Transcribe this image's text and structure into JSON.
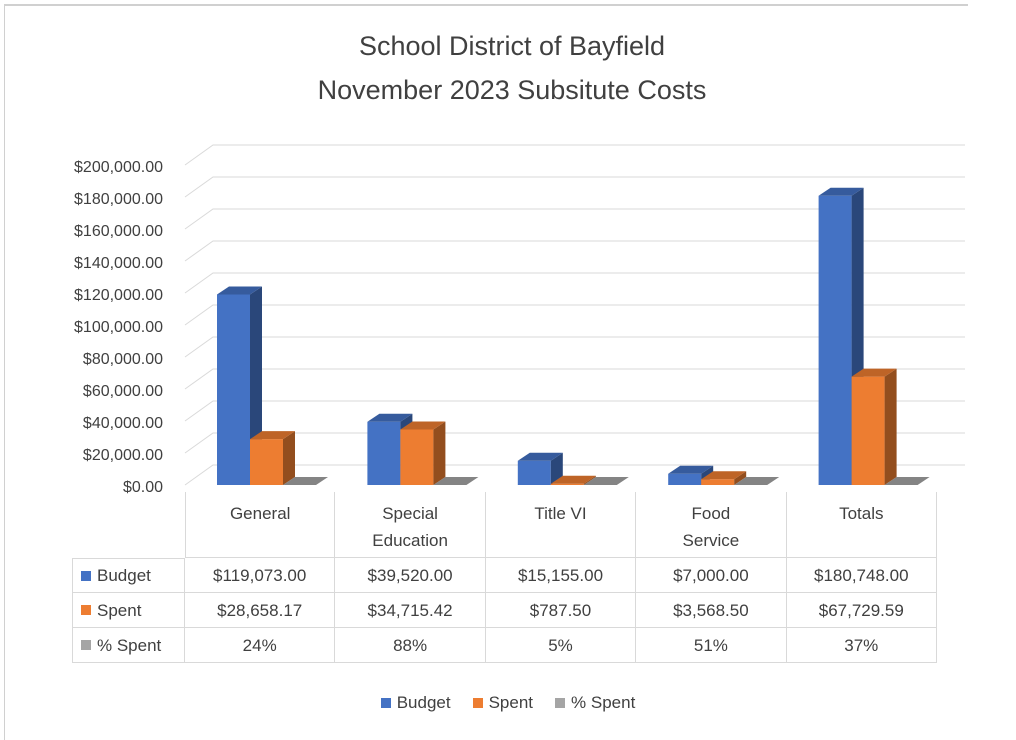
{
  "chart_data": {
    "type": "bar3d",
    "title": [
      "School District of Bayfield",
      "November 2023 Subsitute Costs"
    ],
    "categories": [
      "General",
      "Special Education",
      "Title VI",
      "Food Service",
      "Totals"
    ],
    "series": [
      {
        "name": "Budget",
        "color": "#4472c4",
        "values": [
          119073,
          39520,
          15155,
          7000,
          180748
        ],
        "value_labels": [
          "$119,073.00",
          "$39,520.00",
          "$15,155.00",
          "$7,000.00",
          "$180,748.00"
        ]
      },
      {
        "name": "Spent",
        "color": "#ed7d31",
        "values": [
          28658.17,
          34715.42,
          787.5,
          3568.5,
          67729.59
        ],
        "value_labels": [
          "$28,658.17",
          "$34,715.42",
          "$787.50",
          "$3,568.50",
          "$67,729.59"
        ]
      },
      {
        "name": "% Spent",
        "color": "#a5a5a5",
        "values": [
          0.24,
          0.88,
          0.05,
          0.51,
          0.37
        ],
        "value_labels": [
          "24%",
          "88%",
          "5%",
          "51%",
          "37%"
        ]
      }
    ],
    "ylim": [
      0,
      200000
    ],
    "yticks": [
      {
        "value": 0,
        "label": "$0.00"
      },
      {
        "value": 20000,
        "label": "$20,000.00"
      },
      {
        "value": 40000,
        "label": "$40,000.00"
      },
      {
        "value": 60000,
        "label": "$60,000.00"
      },
      {
        "value": 80000,
        "label": "$80,000.00"
      },
      {
        "value": 100000,
        "label": "$100,000.00"
      },
      {
        "value": 120000,
        "label": "$120,000.00"
      },
      {
        "value": 140000,
        "label": "$140,000.00"
      },
      {
        "value": 160000,
        "label": "$160,000.00"
      },
      {
        "value": 180000,
        "label": "$180,000.00"
      },
      {
        "value": 200000,
        "label": "$200,000.00"
      }
    ],
    "grid": true,
    "data_table": true,
    "legend": "bottom"
  }
}
